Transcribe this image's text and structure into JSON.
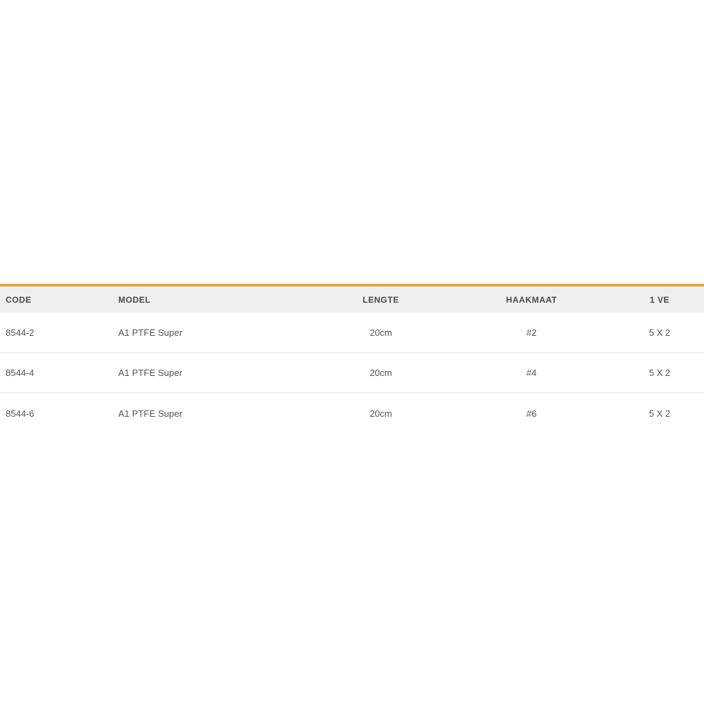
{
  "table": {
    "accent_color": "#e9a63c",
    "header_bg": "#f0efef",
    "columns": [
      {
        "label": "CODE",
        "align": "left"
      },
      {
        "label": "MODEL",
        "align": "left"
      },
      {
        "label": "LENGTE",
        "align": "center"
      },
      {
        "label": "HAAKMAAT",
        "align": "center"
      },
      {
        "label": "1 VE",
        "align": "center"
      }
    ],
    "rows": [
      [
        "8544-2",
        "A1 PTFE Super",
        "20cm",
        "#2",
        "5 X 2"
      ],
      [
        "8544-4",
        "A1 PTFE Super",
        "20cm",
        "#4",
        "5 X 2"
      ],
      [
        "8544-6",
        "A1 PTFE Super",
        "20cm",
        "#6",
        "5 X 2"
      ]
    ]
  }
}
